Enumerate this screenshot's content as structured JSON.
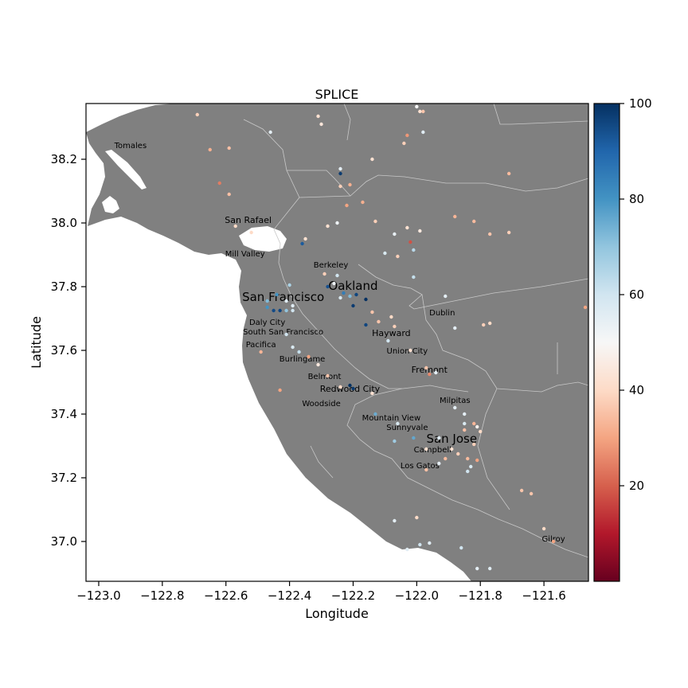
{
  "chart_data": {
    "type": "scatter",
    "title": "SPLICE",
    "xlabel": "Longitude",
    "ylabel": "Latitude",
    "xlim": [
      -123.04,
      -121.46
    ],
    "ylim": [
      36.875,
      38.375
    ],
    "xticks": [
      -123.0,
      -122.8,
      -122.6,
      -122.4,
      -122.2,
      -122.0,
      -121.8,
      -121.6
    ],
    "xtick_labels": [
      "−123.0",
      "−122.8",
      "−122.6",
      "−122.4",
      "−122.2",
      "−122.0",
      "−121.8",
      "−121.6"
    ],
    "yticks": [
      37.0,
      37.2,
      37.4,
      37.6,
      37.8,
      38.0,
      38.2
    ],
    "ytick_labels": [
      "37.0",
      "37.2",
      "37.4",
      "37.6",
      "37.8",
      "38.0",
      "38.2"
    ],
    "colorbar": {
      "colormap": "RdBu",
      "range": [
        0,
        100
      ],
      "ticks": [
        20,
        40,
        60,
        80,
        100
      ],
      "tick_labels": [
        "20",
        "40",
        "60",
        "80",
        "100"
      ]
    },
    "colors": {
      "land": "#808080",
      "water": "#ffffff",
      "boundaries": "#c8c8c8"
    },
    "cities": [
      {
        "name": "Tomales",
        "lon": -122.9,
        "lat": 38.245,
        "size": "small"
      },
      {
        "name": "San Rafael",
        "lon": -122.53,
        "lat": 38.01,
        "size": "medium"
      },
      {
        "name": "Mill Valley",
        "lon": -122.54,
        "lat": 37.905,
        "size": "small"
      },
      {
        "name": "Berkeley",
        "lon": -122.27,
        "lat": 37.87,
        "size": "small"
      },
      {
        "name": "Oakland",
        "lon": -122.2,
        "lat": 37.8,
        "size": "large"
      },
      {
        "name": "San Francisco",
        "lon": -122.42,
        "lat": 37.765,
        "size": "large"
      },
      {
        "name": "Dublin",
        "lon": -121.92,
        "lat": 37.72,
        "size": "small"
      },
      {
        "name": "Daly City",
        "lon": -122.47,
        "lat": 37.69,
        "size": "small"
      },
      {
        "name": "South San Francisco",
        "lon": -122.42,
        "lat": 37.66,
        "size": "small"
      },
      {
        "name": "Hayward",
        "lon": -122.08,
        "lat": 37.655,
        "size": "medium"
      },
      {
        "name": "Pacifica",
        "lon": -122.49,
        "lat": 37.62,
        "size": "small"
      },
      {
        "name": "Union City",
        "lon": -122.03,
        "lat": 37.6,
        "size": "small"
      },
      {
        "name": "Burlingame",
        "lon": -122.36,
        "lat": 37.575,
        "size": "small"
      },
      {
        "name": "Fremont",
        "lon": -121.96,
        "lat": 37.54,
        "size": "medium"
      },
      {
        "name": "Belmont",
        "lon": -122.29,
        "lat": 37.52,
        "size": "small"
      },
      {
        "name": "Redwood City",
        "lon": -122.21,
        "lat": 37.48,
        "size": "medium"
      },
      {
        "name": "Milpitas",
        "lon": -121.88,
        "lat": 37.445,
        "size": "small"
      },
      {
        "name": "Woodside",
        "lon": -122.3,
        "lat": 37.435,
        "size": "small"
      },
      {
        "name": "Mountain View",
        "lon": -122.08,
        "lat": 37.39,
        "size": "small"
      },
      {
        "name": "Sunnyvale",
        "lon": -122.03,
        "lat": 37.36,
        "size": "small"
      },
      {
        "name": "San Jose",
        "lon": -121.89,
        "lat": 37.32,
        "size": "large"
      },
      {
        "name": "Campbell",
        "lon": -121.95,
        "lat": 37.29,
        "size": "small"
      },
      {
        "name": "Los Gatos",
        "lon": -121.99,
        "lat": 37.24,
        "size": "small"
      },
      {
        "name": "Gilroy",
        "lon": -121.57,
        "lat": 37.01,
        "size": "small"
      }
    ],
    "points": [
      {
        "lon": -122.0,
        "lat": 38.365,
        "v": 50
      },
      {
        "lon": -121.99,
        "lat": 38.35,
        "v": 42
      },
      {
        "lon": -121.98,
        "lat": 38.35,
        "v": 36
      },
      {
        "lon": -122.69,
        "lat": 38.34,
        "v": 38
      },
      {
        "lon": -122.31,
        "lat": 38.335,
        "v": 42
      },
      {
        "lon": -122.3,
        "lat": 38.31,
        "v": 44
      },
      {
        "lon": -122.46,
        "lat": 38.285,
        "v": 55
      },
      {
        "lon": -121.98,
        "lat": 38.285,
        "v": 56
      },
      {
        "lon": -122.03,
        "lat": 38.275,
        "v": 28
      },
      {
        "lon": -122.04,
        "lat": 38.25,
        "v": 38
      },
      {
        "lon": -122.59,
        "lat": 38.235,
        "v": 35
      },
      {
        "lon": -122.65,
        "lat": 38.23,
        "v": 32
      },
      {
        "lon": -122.14,
        "lat": 38.2,
        "v": 42
      },
      {
        "lon": -122.24,
        "lat": 38.17,
        "v": 55
      },
      {
        "lon": -122.24,
        "lat": 38.155,
        "v": 98
      },
      {
        "lon": -121.71,
        "lat": 38.155,
        "v": 34
      },
      {
        "lon": -122.62,
        "lat": 38.125,
        "v": 24
      },
      {
        "lon": -122.24,
        "lat": 38.115,
        "v": 38
      },
      {
        "lon": -122.21,
        "lat": 38.12,
        "v": 32
      },
      {
        "lon": -122.59,
        "lat": 38.09,
        "v": 35
      },
      {
        "lon": -122.17,
        "lat": 38.065,
        "v": 32
      },
      {
        "lon": -122.22,
        "lat": 38.055,
        "v": 30
      },
      {
        "lon": -121.88,
        "lat": 38.02,
        "v": 33
      },
      {
        "lon": -122.13,
        "lat": 38.005,
        "v": 38
      },
      {
        "lon": -121.82,
        "lat": 38.005,
        "v": 34
      },
      {
        "lon": -122.25,
        "lat": 38.0,
        "v": 52
      },
      {
        "lon": -122.57,
        "lat": 37.99,
        "v": 40
      },
      {
        "lon": -122.28,
        "lat": 37.99,
        "v": 42
      },
      {
        "lon": -122.03,
        "lat": 37.985,
        "v": 42
      },
      {
        "lon": -122.52,
        "lat": 37.97,
        "v": 40
      },
      {
        "lon": -121.99,
        "lat": 37.975,
        "v": 45
      },
      {
        "lon": -122.07,
        "lat": 37.965,
        "v": 54
      },
      {
        "lon": -121.77,
        "lat": 37.965,
        "v": 36
      },
      {
        "lon": -121.71,
        "lat": 37.97,
        "v": 38
      },
      {
        "lon": -122.35,
        "lat": 37.95,
        "v": 42
      },
      {
        "lon": -122.02,
        "lat": 37.94,
        "v": 18
      },
      {
        "lon": -122.36,
        "lat": 37.935,
        "v": 92
      },
      {
        "lon": -122.01,
        "lat": 37.915,
        "v": 64
      },
      {
        "lon": -122.1,
        "lat": 37.905,
        "v": 58
      },
      {
        "lon": -122.06,
        "lat": 37.895,
        "v": 38
      },
      {
        "lon": -122.29,
        "lat": 37.84,
        "v": 38
      },
      {
        "lon": -122.25,
        "lat": 37.835,
        "v": 60
      },
      {
        "lon": -122.01,
        "lat": 37.83,
        "v": 62
      },
      {
        "lon": -122.4,
        "lat": 37.805,
        "v": 66
      },
      {
        "lon": -122.26,
        "lat": 37.81,
        "v": 52
      },
      {
        "lon": -122.28,
        "lat": 37.8,
        "v": 94
      },
      {
        "lon": -122.23,
        "lat": 37.78,
        "v": 85
      },
      {
        "lon": -122.19,
        "lat": 37.775,
        "v": 96
      },
      {
        "lon": -122.44,
        "lat": 37.775,
        "v": 80
      },
      {
        "lon": -122.21,
        "lat": 37.77,
        "v": 72
      },
      {
        "lon": -122.24,
        "lat": 37.765,
        "v": 58
      },
      {
        "lon": -122.16,
        "lat": 37.76,
        "v": 100
      },
      {
        "lon": -121.91,
        "lat": 37.77,
        "v": 55
      },
      {
        "lon": -122.47,
        "lat": 37.755,
        "v": 72
      },
      {
        "lon": -122.41,
        "lat": 37.755,
        "v": 56
      },
      {
        "lon": -122.47,
        "lat": 37.735,
        "v": 80
      },
      {
        "lon": -122.39,
        "lat": 37.74,
        "v": 56
      },
      {
        "lon": -122.2,
        "lat": 37.74,
        "v": 98
      },
      {
        "lon": -122.45,
        "lat": 37.725,
        "v": 95
      },
      {
        "lon": -122.43,
        "lat": 37.725,
        "v": 96
      },
      {
        "lon": -122.41,
        "lat": 37.725,
        "v": 70
      },
      {
        "lon": -122.39,
        "lat": 37.725,
        "v": 60
      },
      {
        "lon": -122.14,
        "lat": 37.72,
        "v": 36
      },
      {
        "lon": -122.08,
        "lat": 37.705,
        "v": 40
      },
      {
        "lon": -122.12,
        "lat": 37.69,
        "v": 36
      },
      {
        "lon": -122.16,
        "lat": 37.68,
        "v": 96
      },
      {
        "lon": -122.07,
        "lat": 37.675,
        "v": 38
      },
      {
        "lon": -121.88,
        "lat": 37.67,
        "v": 55
      },
      {
        "lon": -121.79,
        "lat": 37.68,
        "v": 38
      },
      {
        "lon": -121.77,
        "lat": 37.685,
        "v": 40
      },
      {
        "lon": -122.41,
        "lat": 37.65,
        "v": 60
      },
      {
        "lon": -122.09,
        "lat": 37.63,
        "v": 60
      },
      {
        "lon": -122.39,
        "lat": 37.61,
        "v": 58
      },
      {
        "lon": -122.49,
        "lat": 37.595,
        "v": 33
      },
      {
        "lon": -122.37,
        "lat": 37.595,
        "v": 62
      },
      {
        "lon": -122.02,
        "lat": 37.6,
        "v": 42
      },
      {
        "lon": -122.34,
        "lat": 37.58,
        "v": 30
      },
      {
        "lon": -122.31,
        "lat": 37.555,
        "v": 45
      },
      {
        "lon": -121.97,
        "lat": 37.545,
        "v": 36
      },
      {
        "lon": -121.96,
        "lat": 37.525,
        "v": 26
      },
      {
        "lon": -121.94,
        "lat": 37.53,
        "v": 55
      },
      {
        "lon": -122.28,
        "lat": 37.52,
        "v": 36
      },
      {
        "lon": -122.21,
        "lat": 37.49,
        "v": 100
      },
      {
        "lon": -122.2,
        "lat": 37.48,
        "v": 98
      },
      {
        "lon": -122.43,
        "lat": 37.475,
        "v": 30
      },
      {
        "lon": -122.24,
        "lat": 37.485,
        "v": 40
      },
      {
        "lon": -122.14,
        "lat": 37.465,
        "v": 42
      },
      {
        "lon": -121.88,
        "lat": 37.42,
        "v": 55
      },
      {
        "lon": -122.13,
        "lat": 37.4,
        "v": 75
      },
      {
        "lon": -121.85,
        "lat": 37.4,
        "v": 55
      },
      {
        "lon": -122.06,
        "lat": 37.37,
        "v": 58
      },
      {
        "lon": -121.85,
        "lat": 37.37,
        "v": 58
      },
      {
        "lon": -121.82,
        "lat": 37.37,
        "v": 33
      },
      {
        "lon": -121.81,
        "lat": 37.36,
        "v": 48
      },
      {
        "lon": -121.85,
        "lat": 37.35,
        "v": 35
      },
      {
        "lon": -121.8,
        "lat": 37.345,
        "v": 40
      },
      {
        "lon": -122.01,
        "lat": 37.325,
        "v": 76
      },
      {
        "lon": -121.93,
        "lat": 37.325,
        "v": 56
      },
      {
        "lon": -122.07,
        "lat": 37.315,
        "v": 68
      },
      {
        "lon": -121.82,
        "lat": 37.305,
        "v": 38
      },
      {
        "lon": -121.97,
        "lat": 37.29,
        "v": 42
      },
      {
        "lon": -121.89,
        "lat": 37.29,
        "v": 42
      },
      {
        "lon": -121.87,
        "lat": 37.275,
        "v": 38
      },
      {
        "lon": -121.91,
        "lat": 37.26,
        "v": 34
      },
      {
        "lon": -121.84,
        "lat": 37.26,
        "v": 34
      },
      {
        "lon": -121.81,
        "lat": 37.255,
        "v": 30
      },
      {
        "lon": -121.93,
        "lat": 37.245,
        "v": 55
      },
      {
        "lon": -121.83,
        "lat": 37.235,
        "v": 58
      },
      {
        "lon": -121.97,
        "lat": 37.225,
        "v": 35
      },
      {
        "lon": -121.84,
        "lat": 37.22,
        "v": 60
      },
      {
        "lon": -121.67,
        "lat": 37.16,
        "v": 36
      },
      {
        "lon": -121.64,
        "lat": 37.15,
        "v": 36
      },
      {
        "lon": -122.07,
        "lat": 37.065,
        "v": 55
      },
      {
        "lon": -122.0,
        "lat": 37.075,
        "v": 40
      },
      {
        "lon": -121.6,
        "lat": 37.04,
        "v": 40
      },
      {
        "lon": -121.57,
        "lat": 37.0,
        "v": 30
      },
      {
        "lon": -121.96,
        "lat": 36.995,
        "v": 56
      },
      {
        "lon": -121.99,
        "lat": 36.99,
        "v": 60
      },
      {
        "lon": -122.03,
        "lat": 36.975,
        "v": 56
      },
      {
        "lon": -121.86,
        "lat": 36.98,
        "v": 60
      },
      {
        "lon": -121.81,
        "lat": 36.915,
        "v": 55
      },
      {
        "lon": -121.77,
        "lat": 36.915,
        "v": 56
      },
      {
        "lon": -121.47,
        "lat": 37.735,
        "v": 30
      }
    ]
  }
}
